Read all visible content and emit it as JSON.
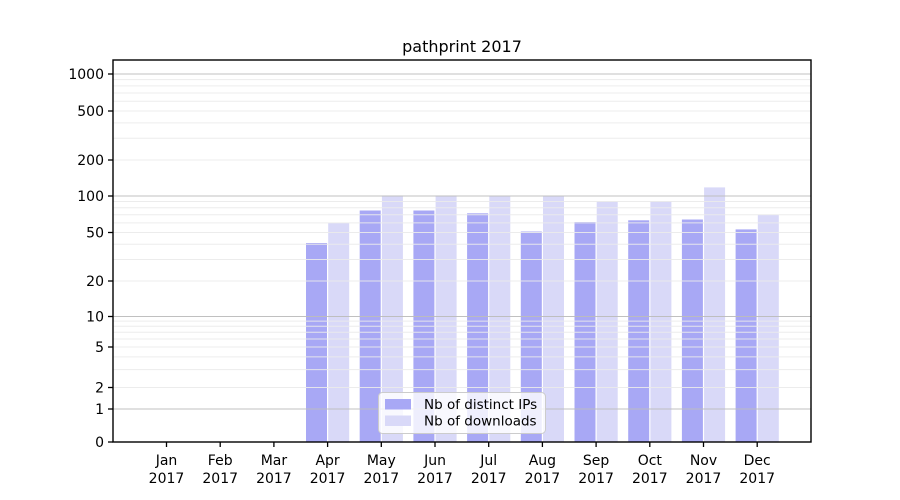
{
  "figure": {
    "background": "#ffffff"
  },
  "chart_data": {
    "type": "bar",
    "title": "pathprint 2017",
    "categories": [
      "Jan",
      "Feb",
      "Mar",
      "Apr",
      "May",
      "Jun",
      "Jul",
      "Aug",
      "Sep",
      "Oct",
      "Nov",
      "Dec"
    ],
    "category_year": "2017",
    "series": [
      {
        "name": "Nb of distinct IPs",
        "color": "#a8a8f5",
        "values": [
          0,
          0,
          0,
          41,
          76,
          76,
          72,
          51,
          61,
          63,
          64,
          53
        ]
      },
      {
        "name": "Nb of downloads",
        "color": "#d9d9f8",
        "values": [
          0,
          0,
          0,
          60,
          101,
          101,
          100,
          100,
          90,
          91,
          118,
          70
        ]
      }
    ],
    "xlabel": "",
    "ylabel": "",
    "yscale": "symlog",
    "y_ticks": [
      0,
      1,
      2,
      5,
      10,
      20,
      50,
      100,
      200,
      500,
      1000
    ],
    "ylim": [
      0,
      1000
    ],
    "grid": true,
    "legend_position": "lower center inside plot"
  },
  "style_colors": {
    "major_grid": "#bdbdbd",
    "minor_grid": "#ebebeb",
    "axis": "#000000",
    "legend_border": "#cccccc",
    "legend_background": "rgba(255,255,255,0.8)"
  }
}
